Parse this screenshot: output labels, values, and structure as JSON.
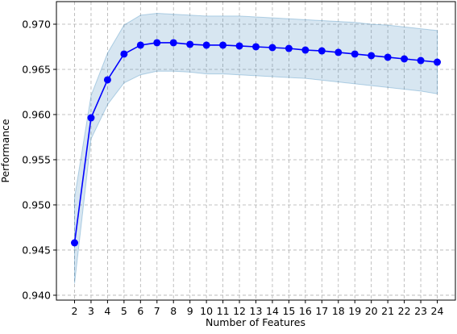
{
  "chart_data": {
    "type": "line",
    "xlabel": "Number of Features",
    "ylabel": "Performance",
    "x": [
      2,
      3,
      4,
      5,
      6,
      7,
      8,
      9,
      10,
      11,
      12,
      13,
      14,
      15,
      16,
      17,
      18,
      19,
      20,
      21,
      22,
      23,
      24
    ],
    "series": [
      {
        "color": "#0000ff",
        "values": [
          0.9458,
          0.95964,
          0.96384,
          0.9667,
          0.96768,
          0.96795,
          0.96795,
          0.96777,
          0.96768,
          0.96768,
          0.96759,
          0.9675,
          0.96741,
          0.96732,
          0.96714,
          0.96705,
          0.96688,
          0.9667,
          0.96652,
          0.96634,
          0.96616,
          0.96598,
          0.9658
        ]
      }
    ],
    "band": {
      "color": "#1f77b4",
      "upper": [
        0.9508,
        0.9621,
        0.9668,
        0.9699,
        0.971,
        0.9712,
        0.9711,
        0.971,
        0.9709,
        0.9709,
        0.9709,
        0.9708,
        0.9707,
        0.9706,
        0.9705,
        0.9704,
        0.9703,
        0.9702,
        0.97,
        0.9699,
        0.9697,
        0.9695,
        0.9693
      ],
      "lower": [
        0.9413,
        0.9573,
        0.9611,
        0.9635,
        0.9644,
        0.9648,
        0.9648,
        0.9647,
        0.9645,
        0.9645,
        0.9644,
        0.9643,
        0.9642,
        0.9641,
        0.964,
        0.9638,
        0.9636,
        0.9634,
        0.9632,
        0.963,
        0.9628,
        0.9626,
        0.9623
      ]
    },
    "xlim": [
      0.9,
      25.1
    ],
    "ylim": [
      0.93946,
      0.9725
    ],
    "xticks": [
      2,
      3,
      4,
      5,
      6,
      7,
      8,
      9,
      10,
      11,
      12,
      13,
      14,
      15,
      16,
      17,
      18,
      19,
      20,
      21,
      22,
      23,
      24
    ],
    "yticks": [
      {
        "value": 0.94,
        "label": "0.940"
      },
      0.945,
      {
        "value": 0.95,
        "label": "0.950"
      },
      0.955,
      {
        "value": 0.96,
        "label": "0.960"
      },
      0.965,
      {
        "value": 0.97,
        "label": "0.970"
      }
    ],
    "grid": true
  }
}
